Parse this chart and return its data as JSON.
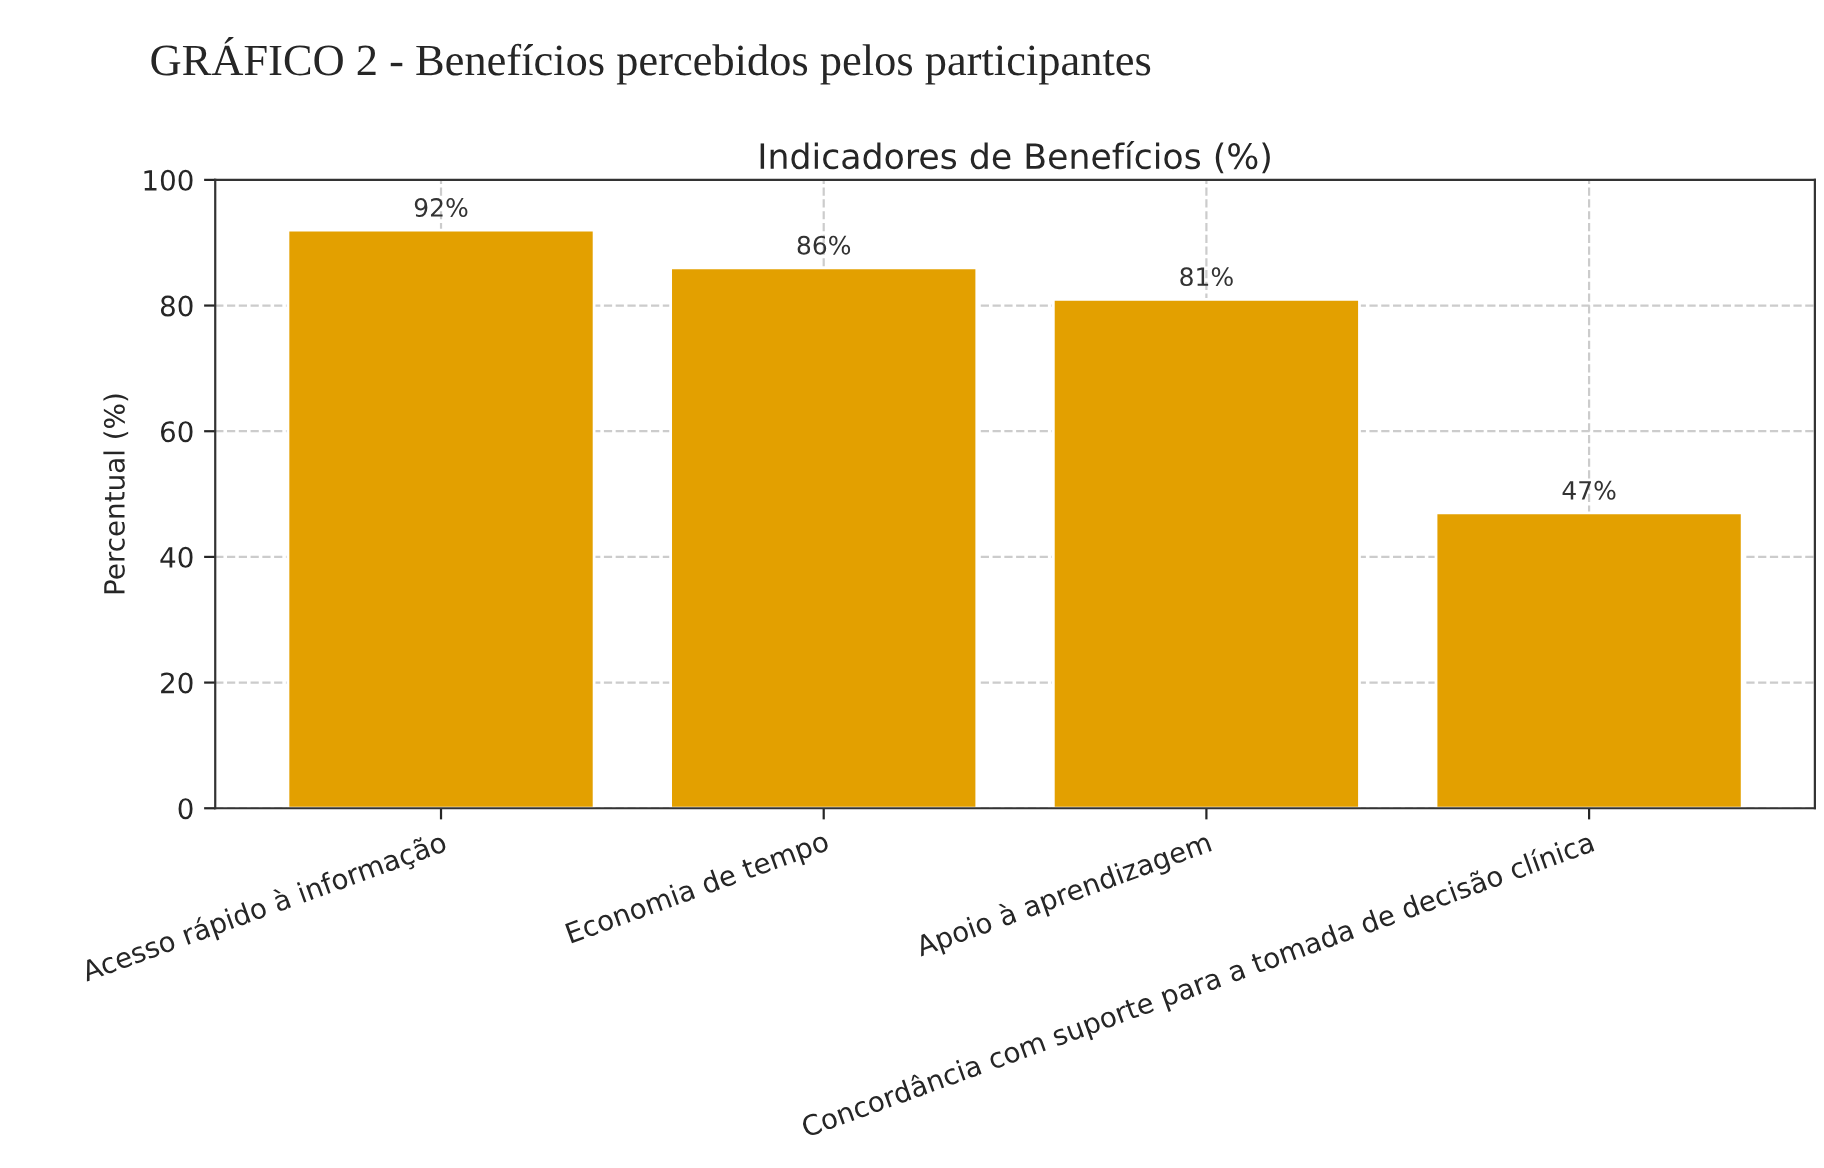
{
  "chart_data": {
    "type": "bar",
    "title": "GRÁFICO 2 - Benefícios percebidos pelos participantes",
    "subtitle": "Indicadores de Benefícios (%)",
    "ylabel": "Percentual (%)",
    "categories": [
      "Acesso rápido à informação",
      "Economia de tempo",
      "Apoio à aprendizagem",
      "Concordância com suporte para a tomada de decisão clínica"
    ],
    "values": [
      92,
      86,
      81,
      47
    ],
    "value_labels": [
      "92%",
      "86%",
      "81%",
      "47%"
    ],
    "color": "#e3a000",
    "ylim": [
      0,
      100
    ],
    "yticks": [
      0,
      20,
      40,
      60,
      80,
      100
    ],
    "grid": true
  }
}
